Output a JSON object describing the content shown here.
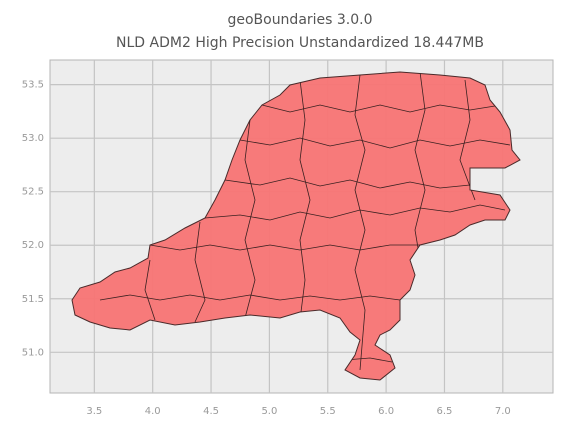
{
  "chart_data": {
    "type": "map",
    "title": "geoBoundaries 3.0.0",
    "subtitle": "NLD ADM2 High Precision Unstandardized 18.447MB",
    "xlim": [
      3.12,
      7.43
    ],
    "ylim": [
      50.62,
      53.73
    ],
    "xticks": [
      3.5,
      {
        "value": 4,
        "label": "4.0"
      },
      4.5,
      {
        "value": 5,
        "label": "5.0"
      },
      5.5,
      {
        "value": 6,
        "label": "6.0"
      },
      6.5,
      {
        "value": 7,
        "label": "7.0"
      }
    ],
    "yticks": [
      {
        "value": 51,
        "label": "51.0"
      },
      51.5,
      {
        "value": 52,
        "label": "52.0"
      },
      52.5,
      {
        "value": 53,
        "label": "53.0"
      },
      53.5
    ],
    "grid": true,
    "color": "#f87474"
  }
}
